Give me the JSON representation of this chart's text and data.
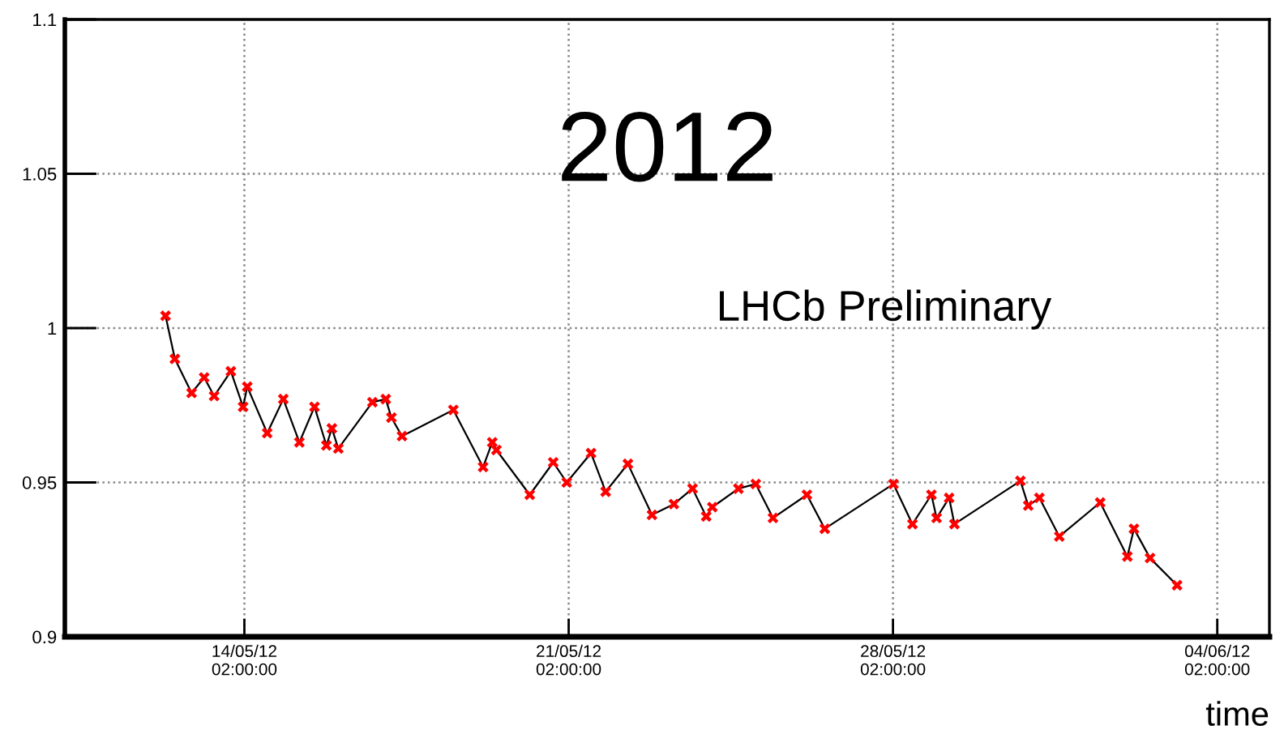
{
  "chart_data": {
    "type": "line",
    "xlabel": "time",
    "annotations": [
      "2012",
      "LHCb Preliminary"
    ],
    "x": [
      "2012-05-12T09:10",
      "2012-05-12T14:00",
      "2012-05-12T22:40",
      "2012-05-13T05:10",
      "2012-05-13T10:20",
      "2012-05-13T19:00",
      "2012-05-14T01:20",
      "2012-05-14T03:30",
      "2012-05-14T13:50",
      "2012-05-14T22:10",
      "2012-05-15T06:30",
      "2012-05-15T14:20",
      "2012-05-15T20:30",
      "2012-05-15T23:20",
      "2012-05-16T02:40",
      "2012-05-16T20:20",
      "2012-05-17T03:15",
      "2012-05-17T06:10",
      "2012-05-17T11:40",
      "2012-05-18T14:15",
      "2012-05-19T05:40",
      "2012-05-19T10:25",
      "2012-05-19T12:35",
      "2012-05-20T05:50",
      "2012-05-20T18:00",
      "2012-05-21T01:00",
      "2012-05-21T13:35",
      "2012-05-21T21:10",
      "2012-05-22T08:40",
      "2012-05-22T21:10",
      "2012-05-23T08:30",
      "2012-05-23T18:10",
      "2012-05-24T01:15",
      "2012-05-24T04:25",
      "2012-05-24T17:55",
      "2012-05-25T02:55",
      "2012-05-25T11:50",
      "2012-05-26T05:25",
      "2012-05-26T14:40",
      "2012-05-28T02:15",
      "2012-05-28T12:05",
      "2012-05-28T21:55",
      "2012-05-29T00:35",
      "2012-05-29T07:05",
      "2012-05-29T09:50",
      "2012-05-30T20:00",
      "2012-05-31T00:05",
      "2012-05-31T05:50",
      "2012-05-31T16:10",
      "2012-06-01T13:20",
      "2012-06-02T03:25",
      "2012-06-02T06:50",
      "2012-06-02T15:10",
      "2012-06-03T05:10"
    ],
    "series": [
      {
        "color": "#000000",
        "marker": "none",
        "values": [
          1.004,
          0.99,
          0.979,
          0.984,
          0.978,
          0.986,
          0.9745,
          0.981,
          0.966,
          0.977,
          0.963,
          0.9745,
          0.962,
          0.9675,
          0.961,
          0.976,
          0.977,
          0.971,
          0.965,
          0.9735,
          0.955,
          0.963,
          0.9605,
          0.946,
          0.9565,
          0.95,
          0.9595,
          0.947,
          0.956,
          0.9395,
          0.943,
          0.948,
          0.939,
          0.942,
          0.948,
          0.9495,
          0.9385,
          0.946,
          0.935,
          0.9495,
          0.9365,
          0.946,
          0.9385,
          0.945,
          0.9365,
          0.9505,
          0.9425,
          0.945,
          0.9325,
          0.9435,
          0.926,
          0.935,
          0.9255,
          0.9167
        ]
      },
      {
        "type": "scatter",
        "color": "#ff0000",
        "marker": "cross",
        "values": [
          1.004,
          0.99,
          0.979,
          0.984,
          0.978,
          0.986,
          0.9745,
          0.981,
          0.966,
          0.977,
          0.963,
          0.9745,
          0.962,
          0.9675,
          0.961,
          0.976,
          0.977,
          0.971,
          0.965,
          0.9735,
          0.955,
          0.963,
          0.9605,
          0.946,
          0.9565,
          0.95,
          0.9595,
          0.947,
          0.956,
          0.9395,
          0.943,
          0.948,
          0.939,
          0.942,
          0.948,
          0.9495,
          0.9385,
          0.946,
          0.935,
          0.9495,
          0.9365,
          0.946,
          0.9385,
          0.945,
          0.9365,
          0.9505,
          0.9425,
          0.945,
          0.9325,
          0.9435,
          0.926,
          0.935,
          0.9255,
          0.9167
        ]
      }
    ],
    "xlim": [
      "2012-05-10T05:00",
      "2012-06-05T05:00"
    ],
    "xticks": [
      {
        "value": "2012-05-14T02:00",
        "label": "14/05/12\n02:00:00"
      },
      {
        "value": "2012-05-21T02:00",
        "label": "21/05/12\n02:00:00"
      },
      {
        "value": "2012-05-28T02:00",
        "label": "28/05/12\n02:00:00"
      },
      {
        "value": "2012-06-04T02:00",
        "label": "04/06/12\n02:00:00"
      }
    ],
    "ylim": [
      0.9,
      1.1
    ],
    "yticks": [
      0.9,
      0.95,
      1,
      1.05,
      1.1
    ],
    "grid": true
  }
}
